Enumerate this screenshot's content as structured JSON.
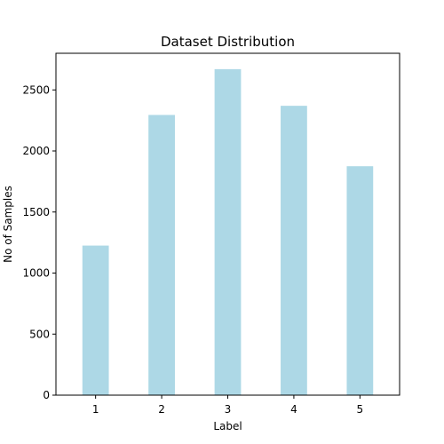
{
  "chart_data": {
    "type": "bar",
    "title": "Dataset Distribution",
    "xlabel": "Label",
    "ylabel": "No of Samples",
    "categories": [
      "1",
      "2",
      "3",
      "4",
      "5"
    ],
    "values": [
      1225,
      2295,
      2670,
      2370,
      1875
    ],
    "ylim": [
      0,
      2800
    ],
    "yticks": [
      0,
      500,
      1000,
      1500,
      2000,
      2500
    ],
    "bar_color": "#add8e6",
    "grid": false,
    "legend": "none"
  }
}
